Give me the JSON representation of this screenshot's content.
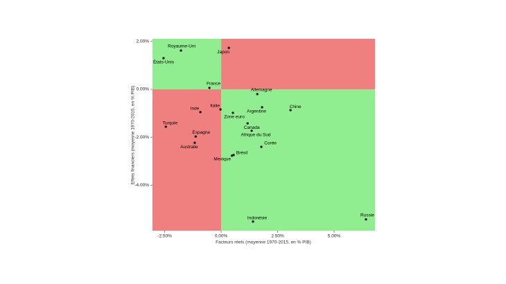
{
  "chart_data": {
    "type": "scatter",
    "xlabel": "Facteurs réels (moyenne 1970-2015, en % PIB)",
    "ylabel": "Effets financiers (moyenne 1970-2015, en % PIB)",
    "labels": [
      "Royaume-Uni",
      "Japon",
      "États-Unis",
      "France",
      "Allemagne",
      "Chine",
      "Argentine",
      "Italie",
      "Inde",
      "Zone euro",
      "Turquie",
      "Canada",
      "Afrique du Sud",
      "Espagne",
      "Australie",
      "Corée",
      "Brésil",
      "Mexique",
      "Indonésie",
      "Russie"
    ],
    "x": [
      -1.78,
      0.34,
      -2.55,
      -0.52,
      1.6,
      3.07,
      1.81,
      -0.03,
      -0.92,
      0.52,
      -2.45,
      1.17,
      1.35,
      -1.13,
      -1.17,
      1.78,
      0.55,
      0.48,
      1.41,
      6.41
    ],
    "y": [
      1.62,
      1.73,
      1.3,
      0.06,
      -0.2,
      -0.87,
      -0.75,
      -0.84,
      -0.95,
      -0.98,
      -1.56,
      -1.42,
      -1.73,
      -1.97,
      -2.23,
      -2.4,
      -2.74,
      -2.77,
      -5.52,
      -5.43
    ],
    "color": "#000000",
    "quadrant_colors": {
      "favorable": "#90ee90",
      "unfavorable": "#f08080"
    },
    "xlim": [
      -3.04,
      6.81
    ],
    "ylim": [
      -5.9,
      2.11
    ],
    "xticks": [
      {
        "value": -2.5,
        "label": "-2.50%"
      },
      {
        "value": 0,
        "label": "0.00%"
      },
      {
        "value": 2.5,
        "label": "2.50%"
      },
      {
        "value": 5,
        "label": "5.00%"
      }
    ],
    "yticks": [
      {
        "value": 2,
        "label": "2.00%"
      },
      {
        "value": 0,
        "label": "0.00%"
      },
      {
        "value": -2,
        "label": "-2.00%"
      },
      {
        "value": -4,
        "label": "-4.00%"
      }
    ]
  }
}
